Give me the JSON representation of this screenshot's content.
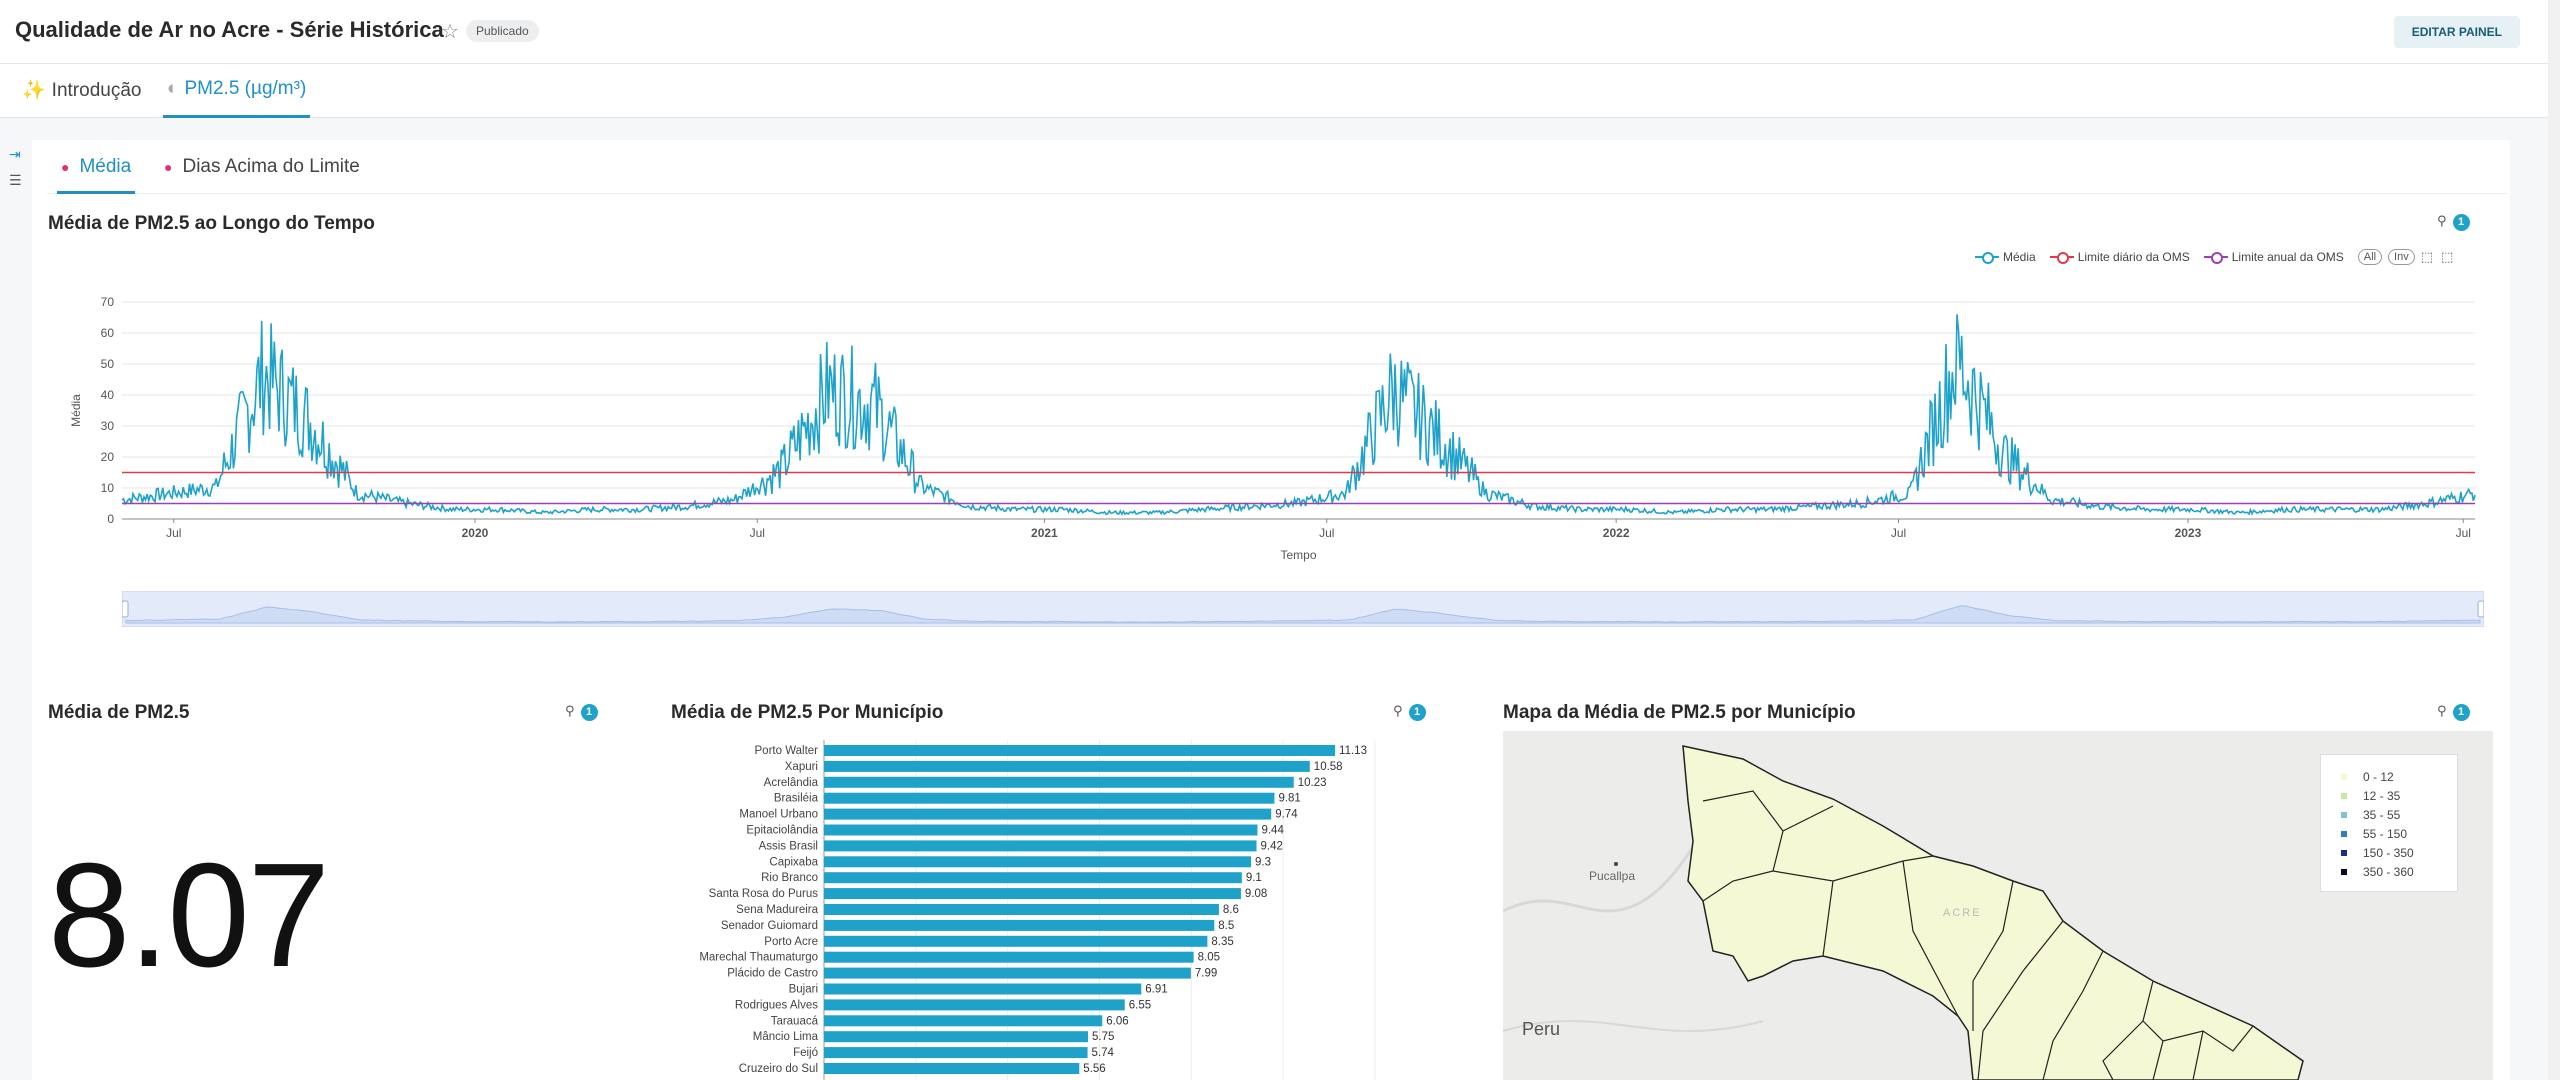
{
  "header": {
    "title": "Qualidade de Ar no Acre - Série Histórica",
    "status_badge": "Publicado",
    "edit_button": "EDITAR PAINEL"
  },
  "top_tabs": [
    {
      "icon": "✨",
      "label": "Introdução",
      "active": false
    },
    {
      "icon": "◐",
      "label": "PM2.5 (µg/m³)",
      "active": true
    }
  ],
  "sub_tabs": [
    {
      "label": "Média",
      "active": true
    },
    {
      "label": "Dias Acima do Limite",
      "active": false
    }
  ],
  "line_chart": {
    "title": "Média de PM2.5 ao Longo do Tempo",
    "filter_count": "1",
    "legend": [
      "Média",
      "Limite diário da OMS",
      "Limite anual da OMS"
    ],
    "legend_buttons": [
      "All",
      "Inv"
    ],
    "colors": {
      "media": "#1fa2c9",
      "daily": "#e2384d",
      "annual": "#9b3fb5"
    }
  },
  "kpi": {
    "title": "Média de PM2.5",
    "filter_count": "1",
    "value": "8.07"
  },
  "bar_chart_panel": {
    "title": "Média de PM2.5 Por Município",
    "filter_count": "1"
  },
  "map_panel": {
    "title": "Mapa da Média de PM2.5 por Município",
    "filter_count": "1",
    "labels": {
      "pucallpa": "Pucallpa",
      "peru": "Peru",
      "acre": "ACRE"
    },
    "legend": [
      {
        "range": "0 - 12",
        "color": "#f4f8d4"
      },
      {
        "range": "12 - 35",
        "color": "#c6e8a0"
      },
      {
        "range": "35 - 55",
        "color": "#7fc6cf"
      },
      {
        "range": "55 - 150",
        "color": "#2f7fbf"
      },
      {
        "range": "150 - 350",
        "color": "#1b2f8a"
      },
      {
        "range": "350 - 360",
        "color": "#050520"
      }
    ]
  },
  "chart_data": [
    {
      "type": "line",
      "title": "Média de PM2.5 ao Longo do Tempo",
      "xlabel": "Tempo",
      "ylabel": "Média",
      "ylim": [
        0,
        70
      ],
      "yticks": [
        0,
        10,
        20,
        30,
        40,
        50,
        60,
        70
      ],
      "x_tick_labels": [
        "Jul",
        "2020",
        "Jul",
        "2021",
        "Jul",
        "2022",
        "Jul",
        "2023",
        "Jul"
      ],
      "x_range": [
        "2019-05",
        "2023-07"
      ],
      "grid": true,
      "legend_position": "top-right",
      "series": [
        {
          "name": "Média",
          "sampled_monthly": {
            "x": [
              "2019-05",
              "2019-06",
              "2019-07",
              "2019-08",
              "2019-09",
              "2019-10",
              "2019-11",
              "2019-12",
              "2020-01",
              "2020-02",
              "2020-03",
              "2020-04",
              "2020-05",
              "2020-06",
              "2020-07",
              "2020-08",
              "2020-09",
              "2020-10",
              "2020-11",
              "2020-12",
              "2021-01",
              "2021-02",
              "2021-03",
              "2021-04",
              "2021-05",
              "2021-06",
              "2021-07",
              "2021-08",
              "2021-09",
              "2021-10",
              "2021-11",
              "2021-12",
              "2022-01",
              "2022-02",
              "2022-03",
              "2022-04",
              "2022-05",
              "2022-06",
              "2022-07",
              "2022-08",
              "2022-09",
              "2022-10",
              "2022-11",
              "2022-12",
              "2023-01",
              "2023-02",
              "2023-03",
              "2023-04",
              "2023-05",
              "2023-06",
              "2023-07"
            ],
            "y": [
              6,
              8,
              10,
              45,
              30,
              8,
              5,
              3,
              3,
              2,
              3,
              3,
              4,
              6,
              15,
              40,
              35,
              10,
              4,
              3,
              3,
              2,
              2,
              3,
              4,
              5,
              8,
              40,
              25,
              8,
              4,
              3,
              3,
              2,
              3,
              3,
              4,
              5,
              8,
              50,
              20,
              6,
              4,
              3,
              3,
              2,
              3,
              3,
              3,
              5,
              8
            ]
          }
        },
        {
          "name": "Limite diário da OMS",
          "value": 15
        },
        {
          "name": "Limite anual da OMS",
          "value": 5
        }
      ]
    },
    {
      "type": "bar",
      "title": "Média de PM2.5 Por Município",
      "orientation": "horizontal",
      "categories": [
        "Porto Walter",
        "Xapuri",
        "Acrelândia",
        "Brasiléia",
        "Manoel Urbano",
        "Epitaciolândia",
        "Assis Brasil",
        "Capixaba",
        "Rio Branco",
        "Santa Rosa do Purus",
        "Sena Madureira",
        "Senador Guiomard",
        "Porto Acre",
        "Marechal Thaumaturgo",
        "Plácido de Castro",
        "Bujari",
        "Rodrigues Alves",
        "Tarauacá",
        "Mâncio Lima",
        "Feijó",
        "Cruzeiro do Sul"
      ],
      "values": [
        11.13,
        10.58,
        10.23,
        9.81,
        9.74,
        9.44,
        9.42,
        9.3,
        9.1,
        9.08,
        8.6,
        8.5,
        8.35,
        8.05,
        7.99,
        6.91,
        6.55,
        6.06,
        5.75,
        5.74,
        5.56
      ],
      "xlim": [
        0,
        12
      ],
      "color": "#1fa2c9"
    }
  ]
}
